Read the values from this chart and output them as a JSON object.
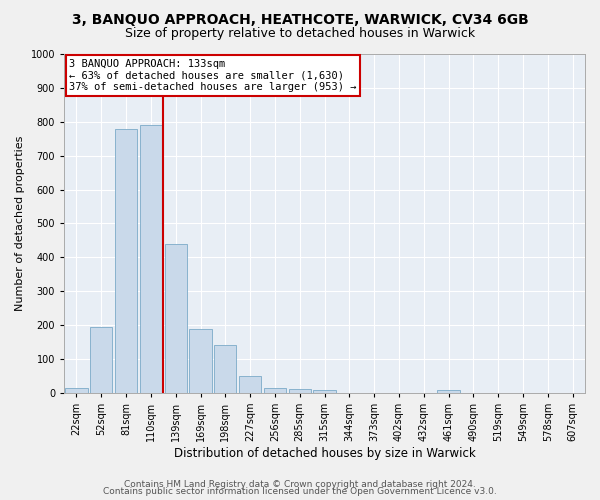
{
  "title": "3, BANQUO APPROACH, HEATHCOTE, WARWICK, CV34 6GB",
  "subtitle": "Size of property relative to detached houses in Warwick",
  "xlabel": "Distribution of detached houses by size in Warwick",
  "ylabel": "Number of detached properties",
  "bin_labels": [
    "22sqm",
    "52sqm",
    "81sqm",
    "110sqm",
    "139sqm",
    "169sqm",
    "198sqm",
    "227sqm",
    "256sqm",
    "285sqm",
    "315sqm",
    "344sqm",
    "373sqm",
    "402sqm",
    "432sqm",
    "461sqm",
    "490sqm",
    "519sqm",
    "549sqm",
    "578sqm",
    "607sqm"
  ],
  "bar_heights": [
    15,
    195,
    780,
    790,
    440,
    190,
    140,
    50,
    15,
    13,
    8,
    0,
    0,
    0,
    0,
    8,
    0,
    0,
    0,
    0,
    0
  ],
  "bar_color": "#c9d9ea",
  "bar_edgecolor": "#7baac8",
  "vline_color": "#cc0000",
  "annotation_line1": "3 BANQUO APPROACH: 133sqm",
  "annotation_line2": "← 63% of detached houses are smaller (1,630)",
  "annotation_line3": "37% of semi-detached houses are larger (953) →",
  "annotation_box_edgecolor": "#cc0000",
  "ylim": [
    0,
    1000
  ],
  "yticks": [
    0,
    100,
    200,
    300,
    400,
    500,
    600,
    700,
    800,
    900,
    1000
  ],
  "background_color": "#e8eef5",
  "grid_color": "#ffffff",
  "footer_line1": "Contains HM Land Registry data © Crown copyright and database right 2024.",
  "footer_line2": "Contains public sector information licensed under the Open Government Licence v3.0.",
  "title_fontsize": 10,
  "subtitle_fontsize": 9,
  "xlabel_fontsize": 8.5,
  "ylabel_fontsize": 8,
  "tick_fontsize": 7,
  "annot_fontsize": 7.5,
  "footer_fontsize": 6.5
}
